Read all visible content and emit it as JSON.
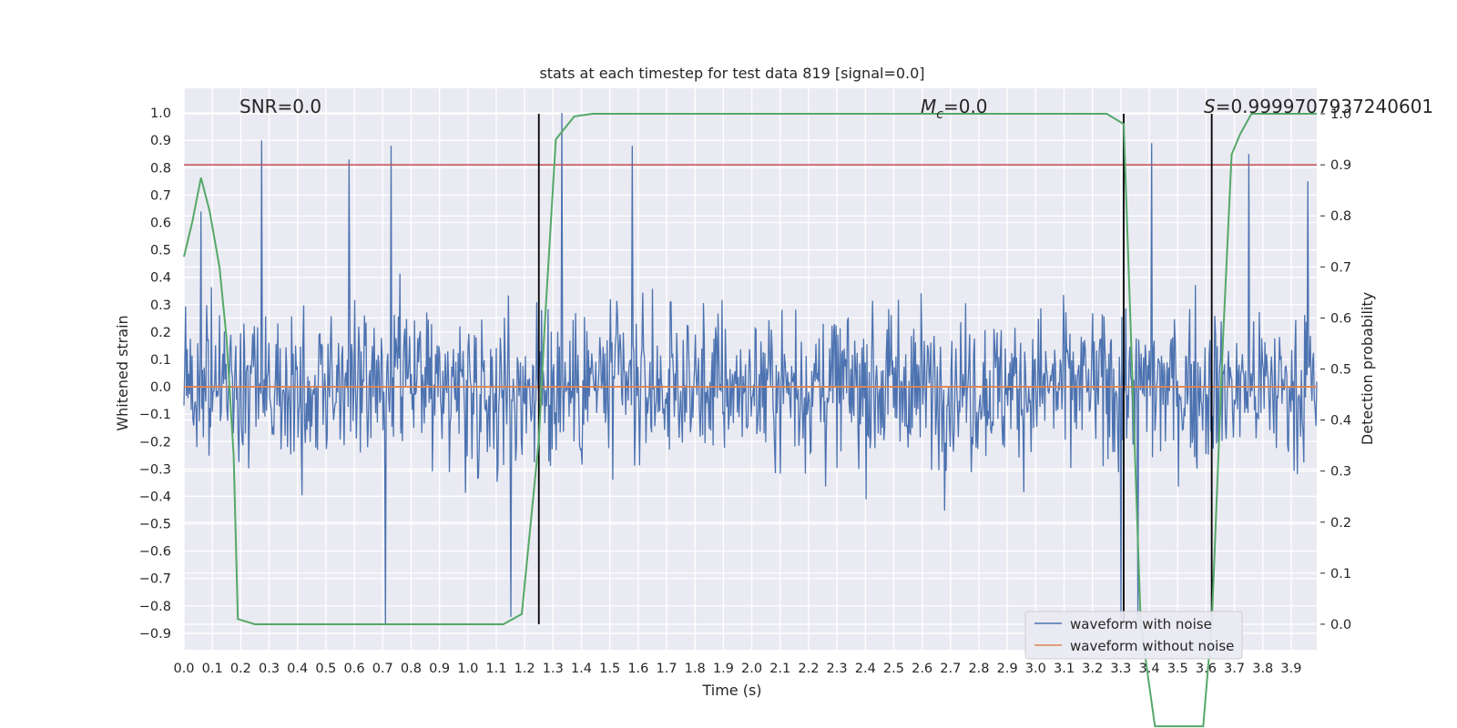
{
  "chart_data": {
    "type": "line",
    "title": "stats at each timestep for test data 819 [signal=0.0]",
    "xlabel": "Time (s)",
    "ylabel_left": "Whitened strain",
    "ylabel_right": "Detection probability",
    "xlim": [
      0.0,
      3.99
    ],
    "ylim_left": [
      -0.96,
      1.09
    ],
    "ylim_right": [
      -0.05,
      1.05
    ],
    "x_ticks": [
      "0.0",
      "0.1",
      "0.2",
      "0.3",
      "0.4",
      "0.5",
      "0.6",
      "0.7",
      "0.8",
      "0.9",
      "1.0",
      "1.1",
      "1.2",
      "1.3",
      "1.4",
      "1.5",
      "1.6",
      "1.7",
      "1.8",
      "1.9",
      "2.0",
      "2.1",
      "2.2",
      "2.3",
      "2.4",
      "2.5",
      "2.6",
      "2.7",
      "2.8",
      "2.9",
      "3.0",
      "3.1",
      "3.2",
      "3.3",
      "3.4",
      "3.5",
      "3.6",
      "3.7",
      "3.8",
      "3.9"
    ],
    "y_ticks_left": [
      "-0.9",
      "-0.8",
      "-0.7",
      "-0.6",
      "-0.5",
      "-0.4",
      "-0.3",
      "-0.2",
      "-0.1",
      "0.0",
      "0.1",
      "0.2",
      "0.3",
      "0.4",
      "0.5",
      "0.6",
      "0.7",
      "0.8",
      "0.9",
      "1.0"
    ],
    "y_ticks_right": [
      "0.0",
      "0.1",
      "0.2",
      "0.3",
      "0.4",
      "0.5",
      "0.6",
      "0.7",
      "0.8",
      "0.9",
      "1.0"
    ],
    "annotations": {
      "snr": "SNR=0.0",
      "mc_symbol": "M",
      "mc_sub": "c",
      "mc_value": "=0.0",
      "s_symbol": "S",
      "s_value": "=0.9999707937240601"
    },
    "legend": {
      "placement": "lower-right",
      "entries": [
        "waveform with noise",
        "waveform without noise"
      ]
    },
    "threshold_line": {
      "axis": "right",
      "y": 0.9
    },
    "vertical_lines_x": [
      1.25,
      3.31,
      3.62
    ],
    "noise_series": {
      "name": "waveform with noise",
      "x_range": [
        0.0,
        3.99
      ],
      "y_range": [
        -0.87,
        1.0
      ],
      "spikes": [
        {
          "x": 0.275,
          "y": 0.9
        },
        {
          "x": 0.58,
          "y": 0.83
        },
        {
          "x": 0.73,
          "y": 0.88
        },
        {
          "x": 0.71,
          "y": -0.87
        },
        {
          "x": 0.06,
          "y": 0.64
        },
        {
          "x": 1.33,
          "y": 1.0
        },
        {
          "x": 1.58,
          "y": 0.88
        },
        {
          "x": 3.41,
          "y": 0.89
        },
        {
          "x": 3.75,
          "y": 0.85
        },
        {
          "x": 3.96,
          "y": 0.75
        },
        {
          "x": 3.36,
          "y": -0.86
        },
        {
          "x": 1.15,
          "y": -0.84
        },
        {
          "x": 3.3,
          "y": -0.85
        }
      ]
    },
    "flat_series": {
      "name": "waveform without noise",
      "y": 0.0
    },
    "probability_series": {
      "x": [
        0.0,
        0.03,
        0.06,
        0.09,
        0.125,
        0.15,
        0.175,
        0.19,
        0.25,
        0.3,
        0.5,
        0.7,
        0.9,
        1.0,
        1.1,
        1.125,
        1.19,
        1.25,
        1.27,
        1.31,
        1.375,
        1.44,
        1.6,
        2.0,
        2.5,
        3.0,
        3.25,
        3.31,
        3.37,
        3.42,
        3.47,
        3.5,
        3.55,
        3.59,
        3.62,
        3.63,
        3.66,
        3.69,
        3.72,
        3.76,
        3.8,
        3.9,
        3.99
      ],
      "y": [
        0.72,
        0.79,
        0.875,
        0.81,
        0.7,
        0.56,
        0.33,
        0.01,
        0.0,
        0.0,
        0.0,
        0.0,
        0.0,
        0.0,
        0.0,
        0.0,
        0.02,
        0.36,
        0.58,
        0.95,
        0.995,
        1.0,
        1.0,
        1.0,
        1.0,
        1.0,
        1.0,
        0.98,
        0.0,
        -0.2,
        -0.2,
        -0.2,
        -0.2,
        -0.2,
        0.0,
        0.14,
        0.56,
        0.92,
        0.96,
        1.0,
        1.0,
        1.0,
        1.0
      ]
    },
    "colors": {
      "axes_bg": "#eaeaf2",
      "grid": "#ffffff",
      "noise": "#4c72b0",
      "flat": "#dd8452",
      "probability": "#55a868",
      "threshold": "#c44e52",
      "vline": "#000000",
      "text": "#262626"
    }
  }
}
